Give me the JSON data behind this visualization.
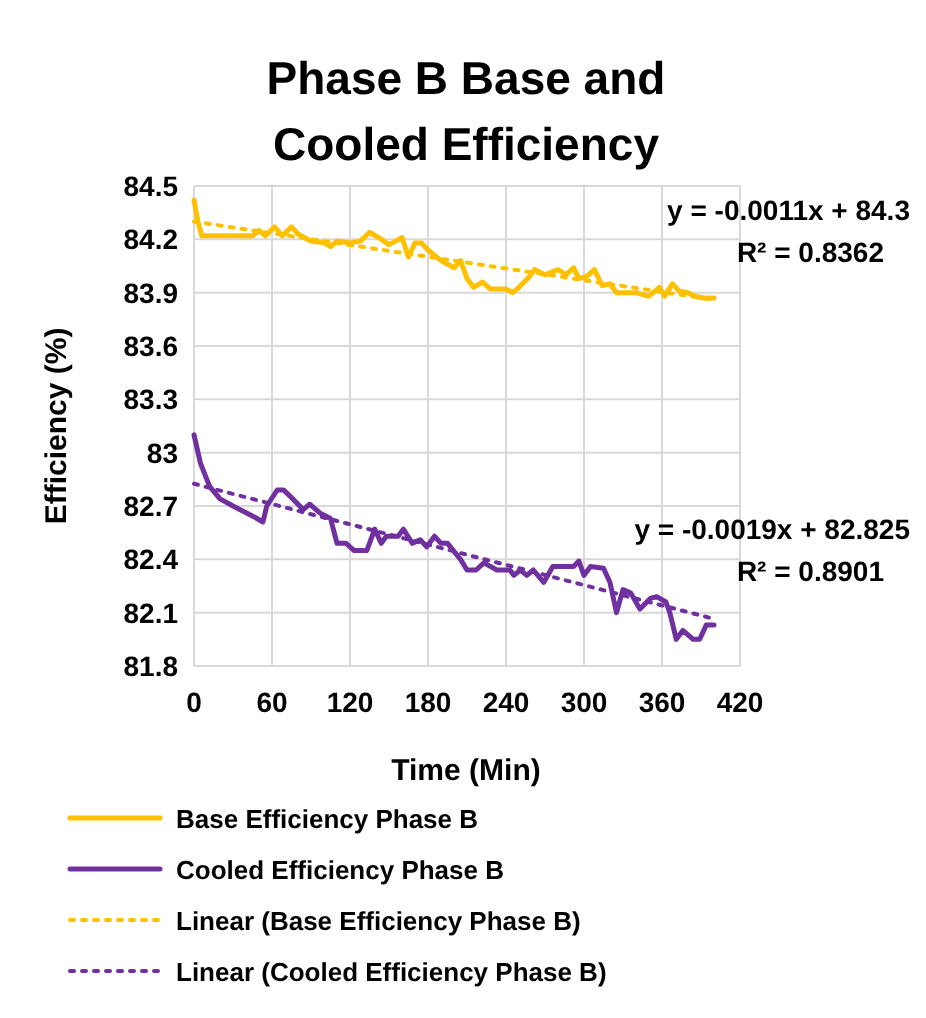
{
  "chart_data": {
    "type": "line",
    "title": "Phase B Base and Cooled Efficiency",
    "xlabel": "Time (Min)",
    "ylabel": "Efficiency (%)",
    "xlim": [
      0,
      420
    ],
    "xticks": [
      0,
      60,
      120,
      180,
      240,
      300,
      360,
      420
    ],
    "ylim": [
      81.8,
      84.5
    ],
    "yticks": [
      81.8,
      82.1,
      82.4,
      82.7,
      83,
      83.3,
      83.6,
      83.9,
      84.2,
      84.5
    ],
    "grid": true,
    "legend": "bottom",
    "marker": "none",
    "annotations": [
      "y = -0.0011x + 84.3",
      "R² = 0.8362",
      "y = -0.0019x + 82.825",
      "R² = 0.8901"
    ],
    "series": [
      {
        "name": "Base Efficiency Phase B",
        "color": "#ffc000",
        "line_style": "solid",
        "x": [
          0,
          3,
          6,
          20,
          45,
          50,
          55,
          62,
          68,
          75,
          80,
          90,
          100,
          105,
          110,
          120,
          128,
          135,
          142,
          150,
          155,
          160,
          165,
          170,
          175,
          180,
          190,
          200,
          205,
          210,
          215,
          222,
          228,
          240,
          245,
          250,
          258,
          262,
          270,
          280,
          286,
          292,
          296,
          302,
          308,
          314,
          320,
          325,
          340,
          350,
          358,
          362,
          368,
          373,
          380,
          385,
          392,
          400
        ],
        "values": [
          84.42,
          84.3,
          84.22,
          84.22,
          84.22,
          84.25,
          84.22,
          84.27,
          84.22,
          84.27,
          84.23,
          84.19,
          84.18,
          84.16,
          84.19,
          84.18,
          84.19,
          84.24,
          84.21,
          84.17,
          84.19,
          84.21,
          84.1,
          84.18,
          84.18,
          84.14,
          84.08,
          84.04,
          84.08,
          83.98,
          83.93,
          83.96,
          83.92,
          83.92,
          83.9,
          83.93,
          83.99,
          84.03,
          84,
          84.03,
          84,
          84.04,
          83.98,
          83.99,
          84.03,
          83.94,
          83.95,
          83.9,
          83.9,
          83.88,
          83.93,
          83.88,
          83.95,
          83.91,
          83.9,
          83.88,
          83.87,
          83.87
        ]
      },
      {
        "name": "Cooled Efficiency Phase B",
        "color": "#7030a0",
        "line_style": "solid",
        "x": [
          0,
          5,
          12,
          20,
          30,
          46,
          53,
          56,
          64,
          69,
          76,
          84,
          89,
          97,
          105,
          110,
          117,
          123,
          133,
          139,
          144,
          148,
          157,
          161,
          168,
          174,
          179,
          185,
          190,
          195,
          205,
          210,
          217,
          223,
          233,
          243,
          246,
          251,
          256,
          261,
          269,
          276,
          292,
          296,
          300,
          305,
          315,
          320,
          325,
          330,
          336,
          343,
          351,
          356,
          363,
          366,
          371,
          376,
          384,
          389,
          394,
          400
        ],
        "values": [
          83.1,
          82.94,
          82.81,
          82.74,
          82.7,
          82.64,
          82.61,
          82.7,
          82.79,
          82.79,
          82.74,
          82.68,
          82.71,
          82.66,
          82.63,
          82.49,
          82.49,
          82.45,
          82.45,
          82.57,
          82.49,
          82.53,
          82.53,
          82.57,
          82.49,
          82.51,
          82.47,
          82.53,
          82.49,
          82.49,
          82.4,
          82.34,
          82.34,
          82.38,
          82.34,
          82.34,
          82.31,
          82.34,
          82.31,
          82.34,
          82.27,
          82.36,
          82.36,
          82.39,
          82.31,
          82.36,
          82.35,
          82.27,
          82.1,
          82.23,
          82.21,
          82.12,
          82.18,
          82.19,
          82.16,
          82.1,
          81.95,
          82,
          81.95,
          81.95,
          82.03,
          82.03
        ]
      },
      {
        "name": "Linear (Base Efficiency Phase B)",
        "color": "#ffc000",
        "line_style": "dotted",
        "x": [
          0,
          400
        ],
        "values": [
          84.3,
          83.86
        ]
      },
      {
        "name": "Linear (Cooled Efficiency Phase B)",
        "color": "#7030a0",
        "line_style": "dotted",
        "x": [
          0,
          400
        ],
        "values": [
          82.825,
          82.065
        ]
      }
    ]
  }
}
